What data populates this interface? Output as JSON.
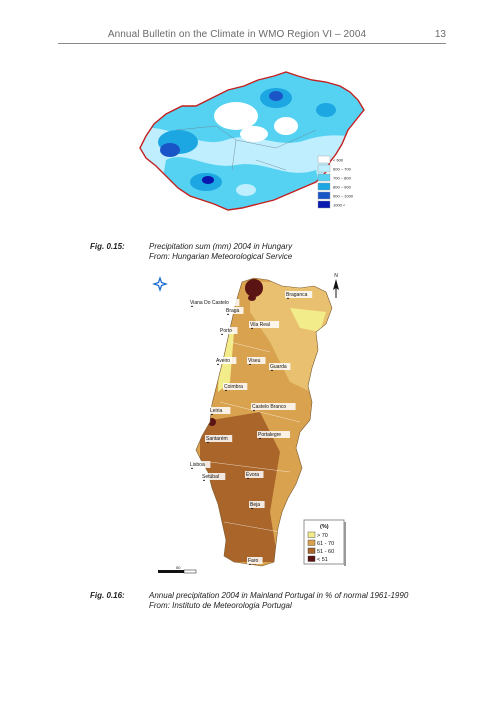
{
  "header": {
    "title": "Annual Bulletin on the Climate in WMO Region VI – 2004",
    "page_number": "13"
  },
  "figures": [
    {
      "label": "Fig. 0.15:",
      "caption_line1": "Precipitation sum (mm) 2004 in Hungary",
      "caption_line2": "From: Hungarian Meteorological Service",
      "legend": [
        {
          "text": "< 600",
          "color": "#ffffff"
        },
        {
          "text": "600 – 700",
          "color": "#bfefff"
        },
        {
          "text": "700 – 800",
          "color": "#55d2f2"
        },
        {
          "text": "800 – 900",
          "color": "#1ca6e2"
        },
        {
          "text": "900 – 1000",
          "color": "#1a55c8"
        },
        {
          "text": "1000 <",
          "color": "#0a18b0"
        }
      ]
    },
    {
      "label": "Fig. 0.16:",
      "caption_line1": "Annual precipitation 2004 in Mainland Portugal in % of normal 1961-1990",
      "caption_line2": "From: Instituto de Meteorologia Portugal",
      "legend_title": "(%)",
      "legend": [
        {
          "text": "> 70",
          "color": "#f2ec8a"
        },
        {
          "text": "61 - 70",
          "color": "#d9a24e"
        },
        {
          "text": "51 - 60",
          "color": "#a9652a"
        },
        {
          "text": "< 51",
          "color": "#5a1414"
        }
      ],
      "cities": [
        "Viana Do Castelo",
        "Braganca",
        "Braga",
        "Vila Real",
        "Porto",
        "Aveiro",
        "Viseu",
        "Guarda",
        "Coimbra",
        "Leiria",
        "Castelo Branco",
        "Santarém",
        "Portalegre",
        "Lisboa",
        "Setúbal",
        "Évora",
        "Beja",
        "Faro"
      ],
      "scale_label": "50",
      "north_label": "N"
    }
  ]
}
